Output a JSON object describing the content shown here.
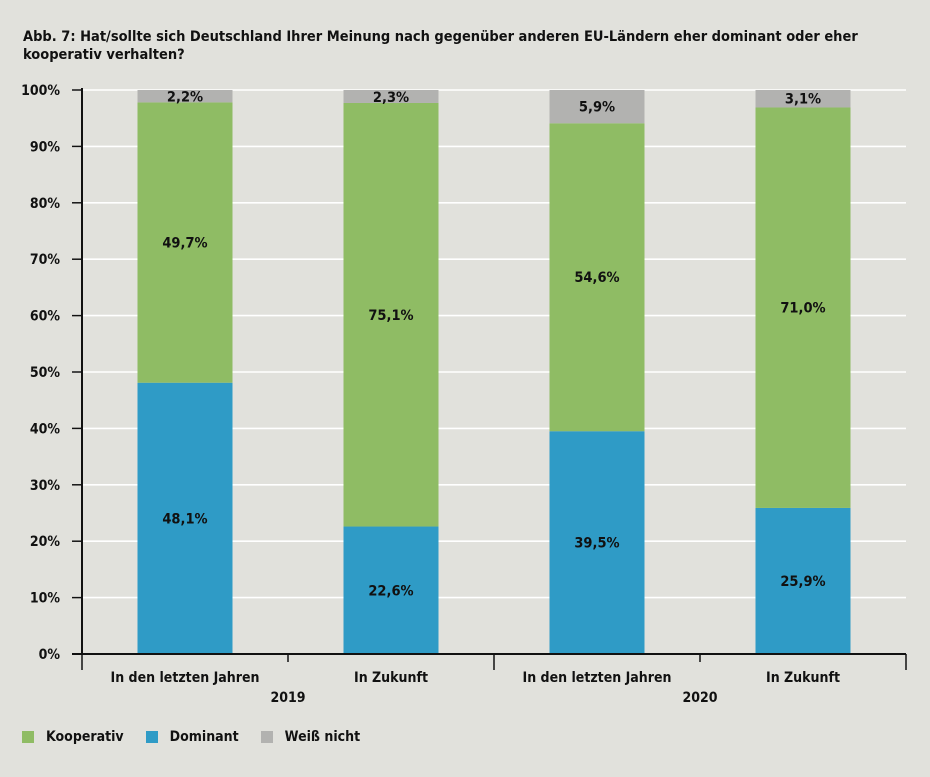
{
  "title": "Abb. 7: Hat/sollte sich Deutschland Ihrer Meinung nach gegenüber anderen EU-Ländern eher dominant oder eher kooperativ verhalten?",
  "colors": {
    "background": "#e1e1dc",
    "Kooperativ": "#8fbc64",
    "Dominant": "#2f9bc6",
    "Weiß nicht": "#b2b2b0",
    "grid": "#ffffff",
    "axis": "#111111"
  },
  "legend": [
    {
      "label": "Kooperativ",
      "color": "#8fbc64"
    },
    {
      "label": "Dominant",
      "color": "#2f9bc6"
    },
    {
      "label": "Weiß nicht",
      "color": "#b2b2b0"
    }
  ],
  "chart_data": {
    "type": "bar",
    "stacked": true,
    "categories": [
      "In den letzten Jahren",
      "In Zukunft",
      "In den letzten Jahren",
      "In Zukunft"
    ],
    "groups": [
      {
        "label": "2019",
        "categories": [
          0,
          1
        ]
      },
      {
        "label": "2020",
        "categories": [
          2,
          3
        ]
      }
    ],
    "series": [
      {
        "name": "Dominant",
        "values": [
          48.1,
          22.6,
          39.5,
          25.9
        ],
        "labels": [
          "48,1%",
          "22,6%",
          "39,5%",
          "25,9%"
        ]
      },
      {
        "name": "Kooperativ",
        "values": [
          49.7,
          75.1,
          54.6,
          71.0
        ],
        "labels": [
          "49,7%",
          "75,1%",
          "54,6%",
          "71,0%"
        ]
      },
      {
        "name": "Weiß nicht",
        "values": [
          2.2,
          2.3,
          5.9,
          3.1
        ],
        "labels": [
          "2,2%",
          "2,3%",
          "5,9%",
          "3,1%"
        ]
      }
    ],
    "yticks": [
      "0%",
      "10%",
      "20%",
      "30%",
      "40%",
      "50%",
      "60%",
      "70%",
      "80%",
      "90%",
      "100%"
    ],
    "ylim": [
      0,
      100
    ],
    "grid": true,
    "legend_position": "bottom-left"
  }
}
